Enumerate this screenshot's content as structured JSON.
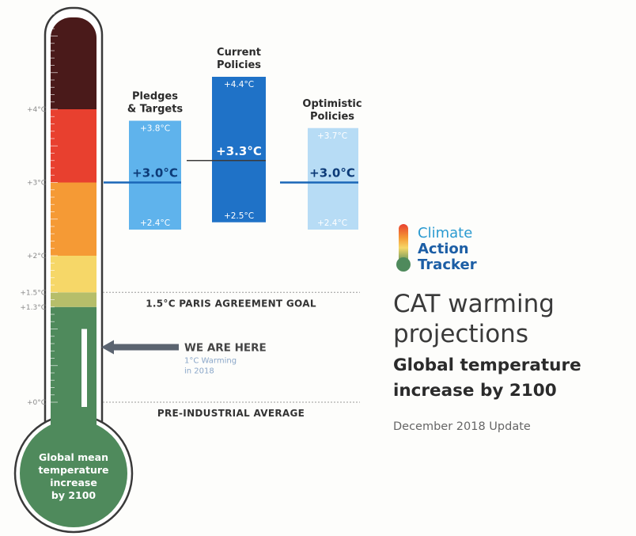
{
  "chart_data": {
    "type": "bar",
    "title": "CAT warming projections",
    "subtitle_lines": [
      "Global temperature",
      "increase by 2100"
    ],
    "update_note": "December 2018 Update",
    "unit": "°C",
    "y_ticks": [
      {
        "value": 4.0,
        "label": "+4°C"
      },
      {
        "value": 3.0,
        "label": "+3°C"
      },
      {
        "value": 2.0,
        "label": "+2°C"
      },
      {
        "value": 1.5,
        "label": "+1.5°C"
      },
      {
        "value": 1.3,
        "label": "+1.3°C"
      },
      {
        "value": 0.0,
        "label": "+0°C"
      }
    ],
    "series": [
      {
        "name_lines": [
          "Pledges",
          "& Targets"
        ],
        "low": 2.4,
        "mid": 3.0,
        "high": 3.8,
        "low_label": "+2.4°C",
        "mid_label": "+3.0°C",
        "high_label": "+3.8°C",
        "color": "#5fb3ec"
      },
      {
        "name_lines": [
          "Current",
          "Policies"
        ],
        "low": 2.5,
        "mid": 3.3,
        "high": 4.4,
        "low_label": "+2.5°C",
        "mid_label": "+3.3°C",
        "high_label": "+4.4°C",
        "color": "#1f72c7"
      },
      {
        "name_lines": [
          "Optimistic",
          "Policies"
        ],
        "low": 2.4,
        "mid": 3.0,
        "high": 3.7,
        "low_label": "+2.4°C",
        "mid_label": "+3.0°C",
        "high_label": "+3.7°C",
        "color": "#b7dcf5"
      }
    ],
    "reference_lines": [
      {
        "value": 1.5,
        "label": "1.5°C PARIS AGREEMENT GOAL"
      },
      {
        "value": 0.0,
        "label": "PRE-INDUSTRIAL AVERAGE"
      }
    ],
    "current": {
      "value": 1.0,
      "label": "WE ARE HERE",
      "sub_lines": [
        "1°C Warming",
        "in 2018"
      ]
    },
    "bulb_lines": [
      "Global mean",
      "temperature",
      "increase",
      "by 2100"
    ],
    "bands": [
      {
        "from": 0.0,
        "to": 1.3,
        "color": "#4f8a5c"
      },
      {
        "from": 1.3,
        "to": 1.5,
        "color": "#b6be6a"
      },
      {
        "from": 1.5,
        "to": 2.0,
        "color": "#f6d768"
      },
      {
        "from": 2.0,
        "to": 3.0,
        "color": "#f59a35"
      },
      {
        "from": 3.0,
        "to": 4.0,
        "color": "#e8402f"
      },
      {
        "from": 4.0,
        "to": 5.4,
        "color": "#4a1a1a"
      }
    ]
  },
  "logo": {
    "lines": [
      "Climate",
      "Action",
      "Tracker"
    ]
  },
  "colors": {
    "median_line": "#1a66b8",
    "bulb_green": "#4f8a5c",
    "arrow": "#5b6470"
  }
}
